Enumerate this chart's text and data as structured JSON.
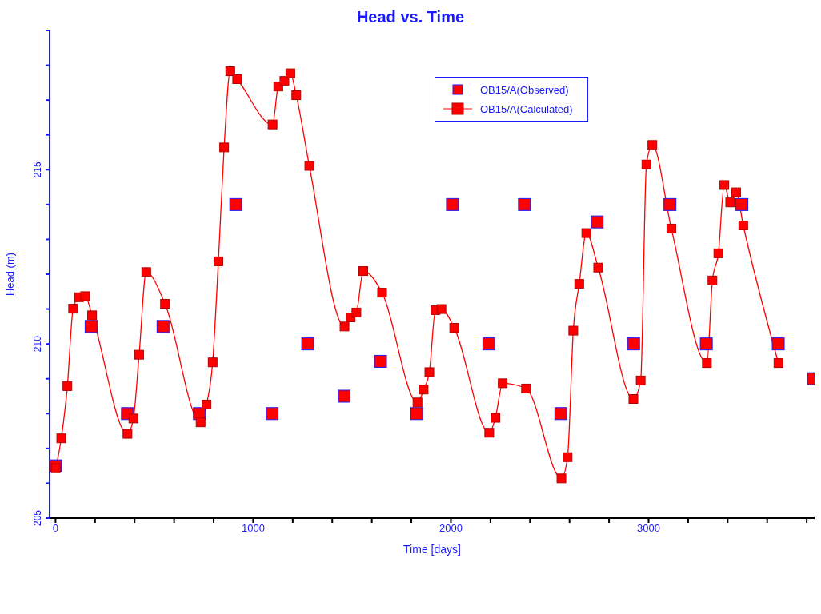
{
  "chart_data": {
    "type": "scatter",
    "title": "Head vs. Time",
    "xlabel": "Time  [days]",
    "ylabel": "Head (m)",
    "xlim": [
      -30,
      3840
    ],
    "ylim": [
      205,
      219
    ],
    "xticks": [
      0,
      {
        "value": 200,
        "label": null
      },
      {
        "value": 400,
        "label": null
      },
      {
        "value": 600,
        "label": null
      },
      {
        "value": 800,
        "label": null
      },
      1000,
      {
        "value": 1200,
        "label": null
      },
      {
        "value": 1400,
        "label": null
      },
      {
        "value": 1600,
        "label": null
      },
      {
        "value": 1800,
        "label": null
      },
      2000,
      {
        "value": 2200,
        "label": null
      },
      {
        "value": 2400,
        "label": null
      },
      {
        "value": 2600,
        "label": null
      },
      {
        "value": 2800,
        "label": null
      },
      3000,
      {
        "value": 3200,
        "label": null
      },
      {
        "value": 3400,
        "label": null
      },
      {
        "value": 3600,
        "label": null
      },
      {
        "value": 3800,
        "label": null
      }
    ],
    "yticks": [
      205,
      {
        "value": 206,
        "label": null
      },
      {
        "value": 207,
        "label": null
      },
      {
        "value": 208,
        "label": null
      },
      {
        "value": 209,
        "label": null
      },
      210,
      {
        "value": 211,
        "label": null
      },
      {
        "value": 212,
        "label": null
      },
      {
        "value": 213,
        "label": null
      },
      {
        "value": 214,
        "label": null
      },
      215,
      {
        "value": 216,
        "label": null
      },
      {
        "value": 217,
        "label": null
      },
      {
        "value": 218,
        "label": null
      },
      {
        "value": 219,
        "label": null
      }
    ],
    "grid": false,
    "legend": "top right",
    "marker": "square",
    "line_style": "solid",
    "series": [
      {
        "name": "OB15/A(Observed)",
        "color": "#ff0000",
        "x": [
          0,
          180,
          364,
          544,
          728,
          912,
          1096,
          1276,
          1460,
          1644,
          1828,
          2008,
          2192,
          2372,
          2556,
          2740,
          2924,
          3108,
          3292,
          3472,
          3656,
          3835
        ],
        "values": [
          206.5,
          210.5,
          208,
          210.5,
          208,
          214,
          208,
          210,
          208.5,
          209.5,
          208,
          214,
          210,
          214,
          208,
          213.5,
          210,
          214,
          210,
          214,
          210,
          209
        ]
      },
      {
        "name": "OB15/A(Calculated)",
        "type": "line",
        "color": "#ff0000",
        "x": [
          1,
          29,
          60,
          89,
          119,
          150,
          185,
          364,
          394,
          423,
          459,
          554,
          734,
          764,
          795,
          824,
          853,
          884,
          919,
          1098,
          1127,
          1158,
          1188,
          1218,
          1284,
          1462,
          1493,
          1522,
          1557,
          1652,
          1831,
          1862,
          1891,
          1922,
          1952,
          2017,
          2194,
          2225,
          2262,
          2380,
          2559,
          2590,
          2619,
          2649,
          2685,
          2745,
          2923,
          2960,
          2989,
          3019,
          3115,
          3295,
          3323,
          3353,
          3383,
          3413,
          3443,
          3479,
          3657
        ],
        "values": [
          206.43,
          207.29,
          208.79,
          211.01,
          211.34,
          211.37,
          210.82,
          207.42,
          207.86,
          209.69,
          212.06,
          211.15,
          207.75,
          208.26,
          209.47,
          212.37,
          215.64,
          217.83,
          217.6,
          216.3,
          217.39,
          217.55,
          217.77,
          217.14,
          215.11,
          210.5,
          210.76,
          210.9,
          212.09,
          211.47,
          208.32,
          208.69,
          209.19,
          210.97,
          211.0,
          210.46,
          207.45,
          207.88,
          208.87,
          208.72,
          206.14,
          206.75,
          210.38,
          211.72,
          213.18,
          212.19,
          208.42,
          208.95,
          215.15,
          215.71,
          213.31,
          209.45,
          211.82,
          212.6,
          214.56,
          214.06,
          214.35,
          213.4,
          209.45
        ]
      }
    ]
  }
}
